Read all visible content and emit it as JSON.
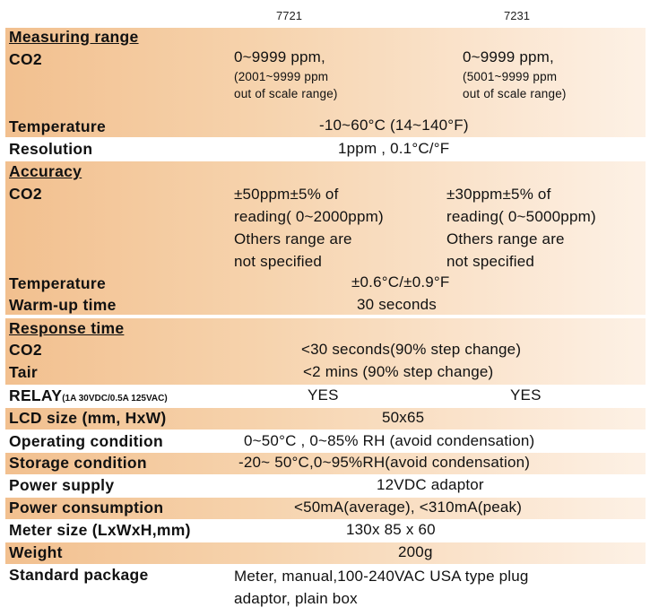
{
  "models": {
    "col1": "7721",
    "col2": "7231"
  },
  "spec": {
    "measuring_range": "Measuring range",
    "co2_label": "CO2",
    "mr_co2_7721_main": "0~9999 ppm,",
    "mr_co2_7721_note1": "(2001~9999 ppm",
    "mr_co2_7721_note2": "out of scale range)",
    "mr_co2_7231_main": "0~9999 ppm,",
    "mr_co2_7231_note1": "(5001~9999 ppm",
    "mr_co2_7231_note2": "out of scale range)",
    "temperature_label": "Temperature",
    "temperature_range": "-10~60°C (14~140°F)",
    "resolution_label": "Resolution",
    "resolution_value": "1ppm  , 0.1°C/°F",
    "accuracy": "Accuracy",
    "acc_co2_7721": [
      "±50ppm±5% of",
      "reading( 0~2000ppm)",
      "Others range are",
      "not specified"
    ],
    "acc_co2_7231": [
      "±30ppm±5% of",
      "reading(  0~5000ppm)",
      "Others range are",
      "not specified"
    ],
    "acc_temp_value": "±0.6°C/±0.9°F",
    "warmup_label": "Warm-up time",
    "warmup_value": "30 seconds",
    "response_time": "Response time",
    "resp_co2_value": "<30 seconds(90% step change)",
    "tair_label": "Tair",
    "tair_value": "<2 mins  (90% step change)",
    "relay_label": "RELAY",
    "relay_note": "(1A 30VDC/0.5A 125VAC)",
    "relay_7721": "YES",
    "relay_7231": "YES",
    "lcd_label": "LCD size (mm, HxW)",
    "lcd_value": "50x65",
    "operating_label": "Operating condition",
    "operating_value": "0~50°C , 0~85% RH (avoid condensation)",
    "storage_label": "Storage condition",
    "storage_value": "-20~ 50°C,0~95%RH(avoid condensation)",
    "power_supply_label": "Power supply",
    "power_supply_value": "12VDC adaptor",
    "power_consumption_label": "Power consumption",
    "power_consumption_value": "<50mA(average), <310mA(peak)",
    "meter_size_label": "Meter size (LxWxH,mm)",
    "meter_size_value": "130x 85 x 60",
    "weight_label": "Weight",
    "weight_value": "200g",
    "package_label": "Standard package",
    "package_line1": "Meter, manual,100-240VAC USA type plug",
    "package_line2": "adaptor, plain box"
  }
}
